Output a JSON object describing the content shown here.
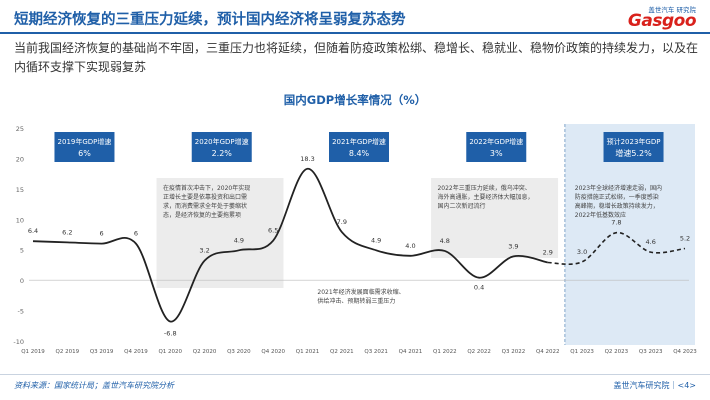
{
  "header": {
    "title": "短期经济恢复的三重压力延续，预计国内经济将呈弱复苏态势",
    "logo_sub": "盖世汽车 研究院",
    "logo_main": "Gasgoo"
  },
  "intro": "当前我国经济恢复的基础尚不牢固，三重压力也将延续，但随着防疫政策松绑、稳增长、稳就业、稳物价政策的持续发力，以及在内循环支撑下实现弱复苏",
  "chart_data": {
    "type": "line",
    "title": "国内GDP增长率情况（%）",
    "categories": [
      "Q1 2019",
      "Q2 2019",
      "Q3 2019",
      "Q4 2019",
      "Q1 2020",
      "Q2 2020",
      "Q3 2020",
      "Q4 2020",
      "Q1 2021",
      "Q2 2021",
      "Q3 2021",
      "Q4 2021",
      "Q1 2022",
      "Q2 2022",
      "Q3 2022",
      "Q4 2022",
      "Q1 2023",
      "Q2 2023",
      "Q3 2023",
      "Q4 2023"
    ],
    "series": [
      {
        "name": "",
        "style": "solid",
        "values": [
          6.4,
          6.2,
          6.0,
          6.0,
          -6.8,
          3.2,
          4.9,
          6.5,
          18.3,
          7.9,
          4.9,
          4.0,
          4.8,
          0.4,
          3.9,
          2.9,
          null,
          null,
          null,
          null
        ]
      },
      {
        "name": "",
        "style": "dashed",
        "values": [
          null,
          null,
          null,
          null,
          null,
          null,
          null,
          null,
          null,
          null,
          null,
          null,
          null,
          null,
          null,
          2.9,
          3.0,
          7.8,
          4.6,
          5.2
        ]
      }
    ],
    "data_labels": [
      "6.4",
      "6.2",
      "6",
      "6",
      "-6.8",
      "3.2",
      "4.9",
      "6.5",
      "18.3",
      "7.9",
      "4.9",
      "4.0",
      "4.8",
      "0.4",
      "3.9",
      "2.9",
      "3.0",
      "7.8",
      "4.6",
      "5.2"
    ],
    "ylim": [
      -10,
      25
    ],
    "yticks": [
      "-10",
      "-5",
      "0",
      "5",
      "10",
      "15",
      "20",
      "25"
    ],
    "line_color": "#222222",
    "forecast_shading": "#dde9f5",
    "period_shading": "#ececec",
    "year_boxes": [
      {
        "title": "2019年GDP增速",
        "value": "6%"
      },
      {
        "title": "2020年GDP增速",
        "value": "2.2%"
      },
      {
        "title": "2021年GDP增速",
        "value": "8.4%"
      },
      {
        "title": "2022年GDP增速",
        "value": "3%"
      },
      {
        "title": "预计2023年GDP",
        "value": "增速5.2%"
      }
    ],
    "box_color": "#1f5fa8",
    "annotations": [
      {
        "lines": [
          "在疫情首次冲击下，2020年实现",
          "正增长主要是依靠投资和出口需",
          "求，而消费需求全年处于萎缩状",
          "态，是经济恢复的主要拖累项"
        ]
      },
      {
        "lines": [
          "2021年经济发展面临需求收缩、",
          "供给冲击、预期转弱三重压力"
        ]
      },
      {
        "lines": [
          "2022年三重压力延续，俄乌冲突、",
          "海外高通胀，主要经济体大幅加息，",
          "国内二次新冠流行"
        ]
      },
      {
        "lines": [
          "2023年全球经济增速走弱，国内",
          "防疫措施正式松绑，一季度感染",
          "高峰期，稳增长政策持续发力，",
          "2022年低基数效应"
        ]
      }
    ]
  },
  "footer": {
    "source": "资料来源：国家统计局；盖世汽车研究院分析",
    "right": "盖世汽车研究院｜<4>"
  }
}
